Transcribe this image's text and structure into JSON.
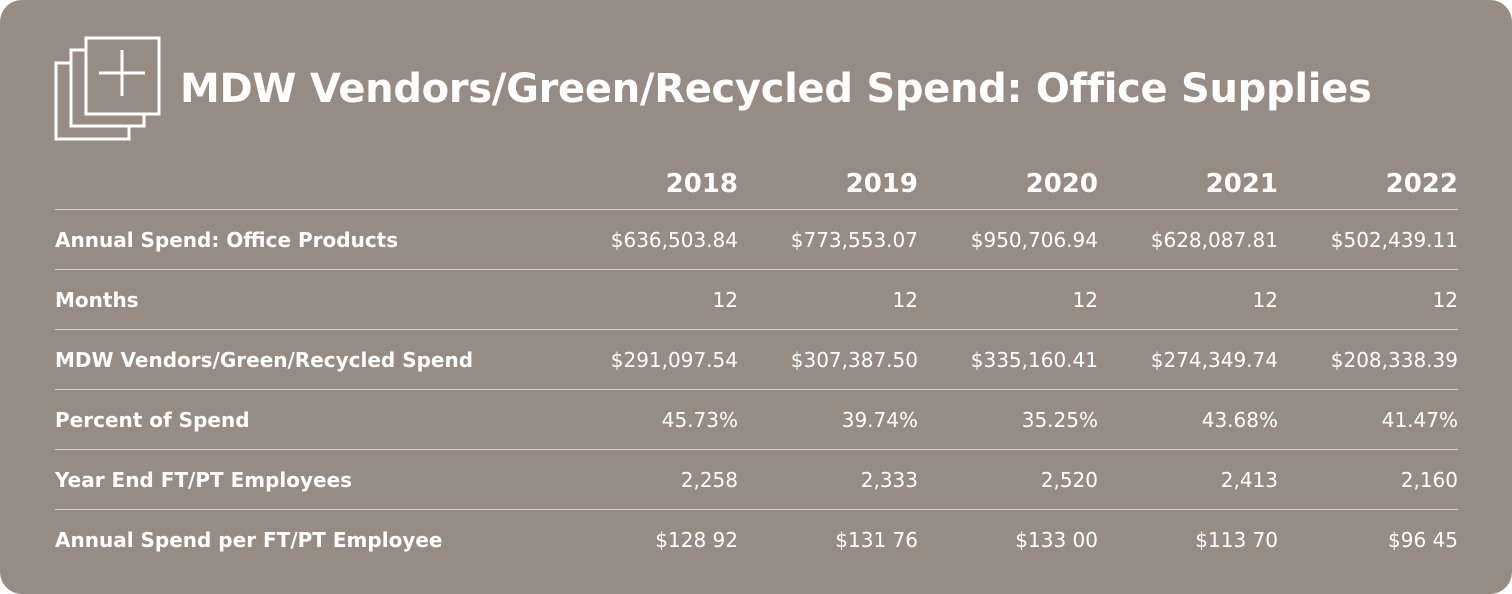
{
  "title": "MDW Vendors/Green/Recycled Spend: Office Supplies",
  "icon": "stacked-pages-plus-icon",
  "colors": {
    "background": "#968c83",
    "text": "#ffffff"
  },
  "table": {
    "headers": [
      "",
      "2018",
      "2019",
      "2020",
      "2021",
      "2022"
    ],
    "rows": [
      {
        "label": "Annual Spend: Office Products",
        "values": [
          "$636,503.84",
          "$773,553.07",
          "$950,706.94",
          "$628,087.81",
          "$502,439.11"
        ]
      },
      {
        "label": "Months",
        "values": [
          "12",
          "12",
          "12",
          "12",
          "12"
        ]
      },
      {
        "label": "MDW Vendors/Green/Recycled Spend",
        "values": [
          "$291,097.54",
          "$307,387.50",
          "$335,160.41",
          "$274,349.74",
          "$208,338.39"
        ]
      },
      {
        "label": "Percent of Spend",
        "values": [
          "45.73%",
          "39.74%",
          "35.25%",
          "43.68%",
          "41.47%"
        ]
      },
      {
        "label": "Year End FT/PT Employees",
        "values": [
          "2,258",
          "2,333",
          "2,520",
          "2,413",
          "2,160"
        ]
      },
      {
        "label": "Annual Spend per FT/PT Employee",
        "values": [
          "$128 92",
          "$131 76",
          "$133 00",
          "$113 70",
          "$96 45"
        ]
      }
    ]
  }
}
